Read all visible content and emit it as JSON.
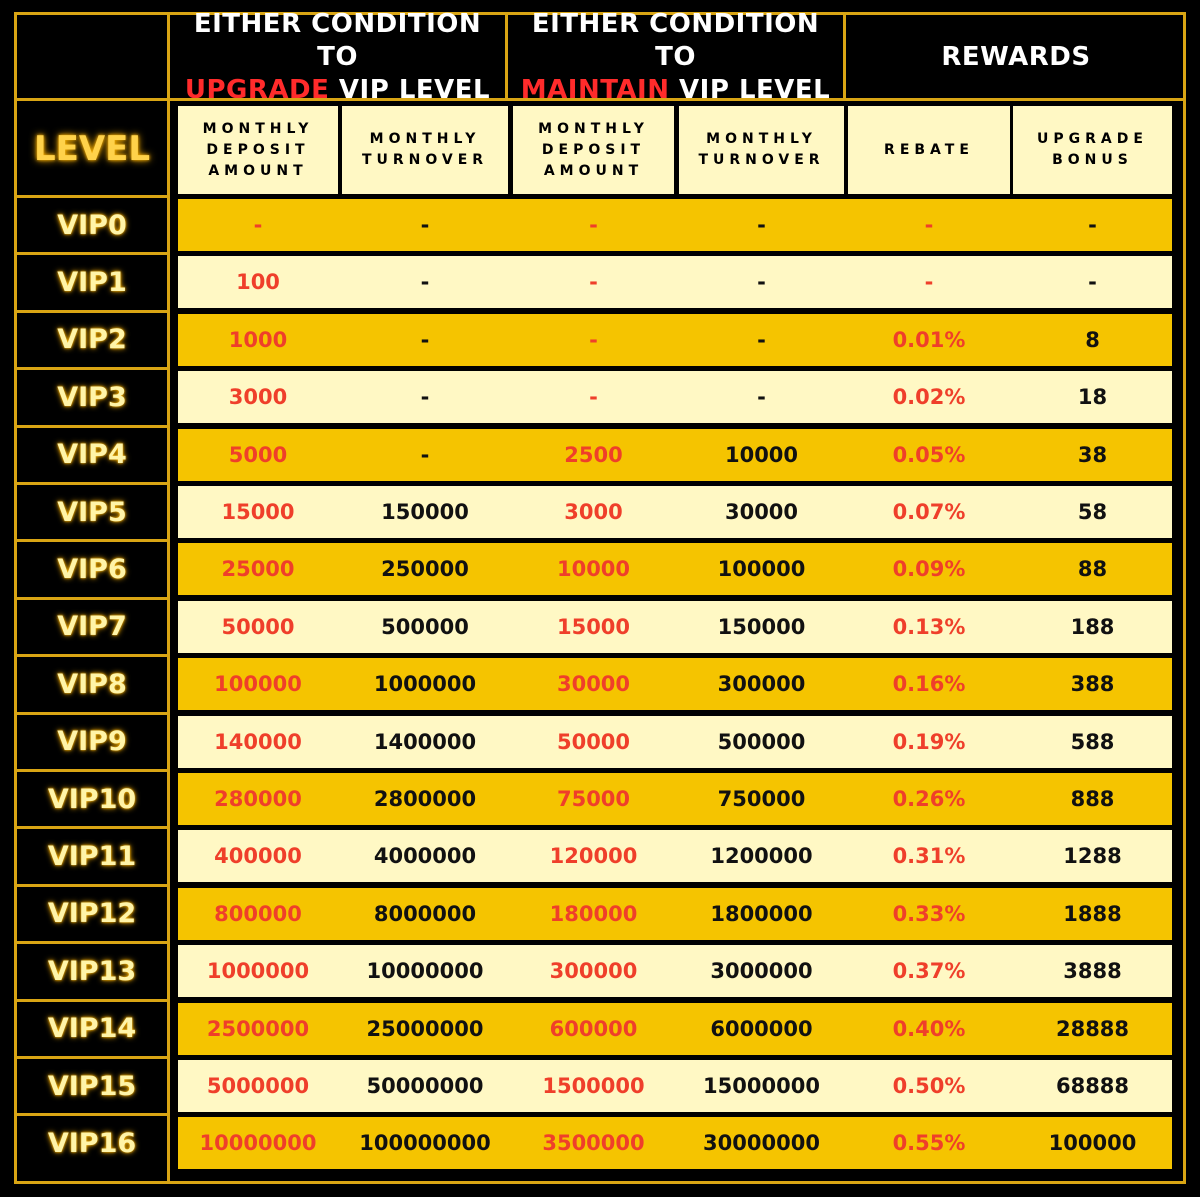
{
  "colors": {
    "gold": "#f5c400",
    "cream": "#fff8c4",
    "red": "#ef3f2a",
    "border": "#d9a514"
  },
  "header": {
    "upgrade": {
      "line1": "EITHER CONDITION TO",
      "highlight": "UPGRADE",
      "rest": " VIP LEVEL"
    },
    "maintain": {
      "line1": "EITHER CONDITION TO",
      "highlight": "MAINTAIN",
      "rest": " VIP LEVEL"
    },
    "rewards": "REWARDS",
    "level": "LEVEL"
  },
  "columns": [
    "MONTHLY\nDEPOSIT\nAMOUNT",
    "MONTHLY\nTURNOVER",
    "MONTHLY\nDEPOSIT\nAMOUNT",
    "MONTHLY\nTURNOVER",
    "REBATE",
    "UPGRADE\nBONUS"
  ],
  "rows": [
    {
      "level": "VIP0",
      "cells": [
        "-",
        "-",
        "-",
        "-",
        "-",
        "-"
      ]
    },
    {
      "level": "VIP1",
      "cells": [
        "100",
        "-",
        "-",
        "-",
        "-",
        "-"
      ]
    },
    {
      "level": "VIP2",
      "cells": [
        "1000",
        "-",
        "-",
        "-",
        "0.01%",
        "8"
      ]
    },
    {
      "level": "VIP3",
      "cells": [
        "3000",
        "-",
        "-",
        "-",
        "0.02%",
        "18"
      ]
    },
    {
      "level": "VIP4",
      "cells": [
        "5000",
        "-",
        "2500",
        "10000",
        "0.05%",
        "38"
      ]
    },
    {
      "level": "VIP5",
      "cells": [
        "15000",
        "150000",
        "3000",
        "30000",
        "0.07%",
        "58"
      ]
    },
    {
      "level": "VIP6",
      "cells": [
        "25000",
        "250000",
        "10000",
        "100000",
        "0.09%",
        "88"
      ]
    },
    {
      "level": "VIP7",
      "cells": [
        "50000",
        "500000",
        "15000",
        "150000",
        "0.13%",
        "188"
      ]
    },
    {
      "level": "VIP8",
      "cells": [
        "100000",
        "1000000",
        "30000",
        "300000",
        "0.16%",
        "388"
      ]
    },
    {
      "level": "VIP9",
      "cells": [
        "140000",
        "1400000",
        "50000",
        "500000",
        "0.19%",
        "588"
      ]
    },
    {
      "level": "VIP10",
      "cells": [
        "280000",
        "2800000",
        "75000",
        "750000",
        "0.26%",
        "888"
      ]
    },
    {
      "level": "VIP11",
      "cells": [
        "400000",
        "4000000",
        "120000",
        "1200000",
        "0.31%",
        "1288"
      ]
    },
    {
      "level": "VIP12",
      "cells": [
        "800000",
        "8000000",
        "180000",
        "1800000",
        "0.33%",
        "1888"
      ]
    },
    {
      "level": "VIP13",
      "cells": [
        "1000000",
        "10000000",
        "300000",
        "3000000",
        "0.37%",
        "3888"
      ]
    },
    {
      "level": "VIP14",
      "cells": [
        "2500000",
        "25000000",
        "600000",
        "6000000",
        "0.40%",
        "28888"
      ]
    },
    {
      "level": "VIP15",
      "cells": [
        "5000000",
        "50000000",
        "1500000",
        "15000000",
        "0.50%",
        "68888"
      ]
    },
    {
      "level": "VIP16",
      "cells": [
        "10000000",
        "100000000",
        "3500000",
        "30000000",
        "0.55%",
        "100000"
      ]
    }
  ]
}
